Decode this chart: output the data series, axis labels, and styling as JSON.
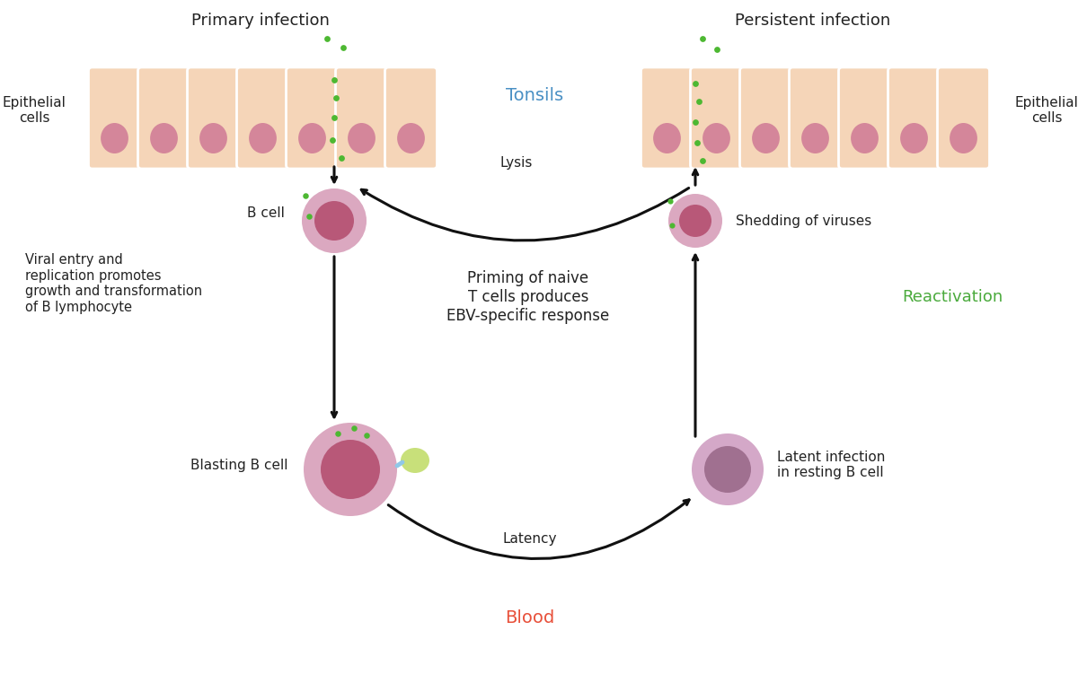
{
  "bg_color": "#ffffff",
  "cell_body_color": "#f5d5b8",
  "cell_nucleus_color": "#d4869a",
  "virus_color": "#4db832",
  "b_cell_outer_color": "#dba8c0",
  "b_cell_inner_color": "#b85878",
  "b_cell_resting_outer": "#d4a8c8",
  "b_cell_resting_inner": "#a07090",
  "green_small_cell_color": "#c8e07a",
  "connector_color": "#90c8e8",
  "arrow_color": "#111111",
  "tonsils_color": "#4a90c4",
  "blood_color": "#e8503a",
  "reactivation_color": "#4aaa3c",
  "text_color": "#222222",
  "title_left": "Primary infection",
  "title_right": "Persistent infection",
  "label_tonsils": "Tonsils",
  "label_blood": "Blood",
  "label_reactivation": "Reactivation",
  "label_bcell_left": "B cell",
  "label_bcell_right": "Shedding of viruses",
  "label_blasting": "Blasting B cell",
  "label_latent": "Latent infection\nin resting B cell",
  "label_lysis": "Lysis",
  "label_latency": "Latency",
  "label_epithelial_left": "Epithelial\ncells",
  "label_epithelial_right": "Epithelial\ncells",
  "label_viral_entry": "Viral entry and\nreplication promotes\ngrowth and transformation\nof B lymphocyte",
  "label_priming": "Priming of naive\nT cells produces\nEBV-specific response",
  "figw": 12.0,
  "figh": 7.61
}
